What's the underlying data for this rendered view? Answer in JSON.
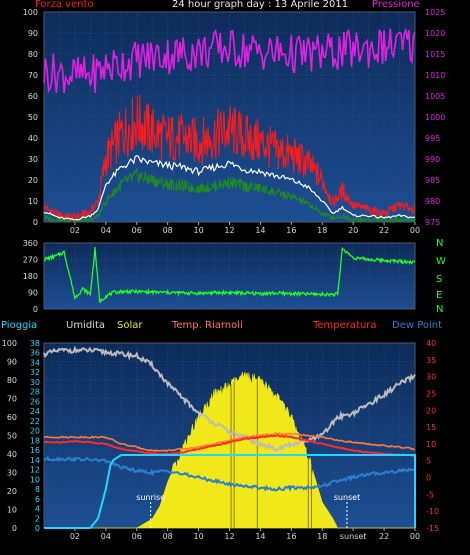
{
  "header": {
    "left_label": "Forza vento",
    "title": "24 hour graph day : 13 Aprile 2011",
    "right_label": "Pressione"
  },
  "legend": {
    "pioggia": "Pioggia",
    "umidita": "Umidita",
    "solar": "Solar",
    "temp_riarnoli": "Temp. Riarnoli",
    "temperatura": "Temperatura",
    "dew_point": "Dew Point"
  },
  "compass": [
    "N",
    "W",
    "S",
    "E",
    "N"
  ],
  "colors": {
    "background": "#000000",
    "plot_bg_top": "#0d2b5a",
    "plot_bg_bottom": "#1d4f94",
    "gust": "#ff1a1a",
    "speed": "#ffffff",
    "avg_speed": "#1f8a1f",
    "pressure": "#e020e0",
    "wind_dir": "#22ff22",
    "humidity": "#bcbcbc",
    "solar": "#f0e818",
    "temp_riarnoli": "#ff7a3a",
    "temperature": "#ff2a2a",
    "dew_point": "#2a7fd0",
    "rain": "#20d8ff"
  },
  "chart_data": [
    {
      "type": "line",
      "name": "wind-pressure",
      "x_tick_labels": [
        "02",
        "04",
        "06",
        "08",
        "10",
        "12",
        "14",
        "16",
        "18",
        "20",
        "22",
        "00"
      ],
      "y_left_ticks": [
        "100",
        "90",
        "80",
        "70",
        "60",
        "50",
        "40",
        "30",
        "20",
        "10",
        "0"
      ],
      "y_right_ticks": [
        "1025",
        "1020",
        "1015",
        "1010",
        "1005",
        "1000",
        "995",
        "990",
        "985",
        "980",
        "975"
      ],
      "ylim_left": [
        0,
        100
      ],
      "ylim_right": [
        973,
        1026
      ],
      "x_range": [
        0,
        24
      ],
      "series": [
        {
          "name": "Forza vento",
          "key": "gust",
          "x": [
            0,
            1,
            2,
            3,
            3.5,
            4,
            5,
            6,
            7,
            8,
            9,
            10,
            11,
            12,
            13,
            14,
            15,
            16,
            17,
            18,
            18.7,
            19.3,
            20,
            21,
            22,
            23,
            24
          ],
          "values": [
            7,
            3,
            2,
            5,
            10,
            30,
            42,
            48,
            43,
            40,
            40,
            38,
            41,
            44,
            40,
            38,
            34,
            32,
            28,
            20,
            9,
            15,
            8,
            6,
            4,
            8,
            6
          ]
        },
        {
          "name": "speed",
          "key": "speed",
          "x": [
            0,
            1,
            2,
            3,
            3.5,
            4,
            5,
            6,
            7,
            8,
            9,
            10,
            11,
            12,
            13,
            14,
            15,
            16,
            17,
            18,
            18.7,
            19.3,
            20,
            21,
            22,
            23,
            24
          ],
          "values": [
            5,
            2,
            1,
            3,
            6,
            18,
            26,
            30,
            28,
            27,
            26,
            24,
            26,
            28,
            25,
            24,
            22,
            20,
            17,
            10,
            4,
            7,
            3,
            3,
            2,
            3,
            2
          ]
        },
        {
          "name": "avg",
          "key": "avg_speed",
          "x": [
            0,
            1,
            2,
            3,
            3.5,
            4,
            5,
            6,
            7,
            8,
            9,
            10,
            11,
            12,
            13,
            14,
            15,
            16,
            17,
            18,
            18.7,
            19.3,
            20,
            21,
            22,
            23,
            24
          ],
          "values": [
            2,
            1,
            0,
            1,
            3,
            10,
            18,
            22,
            20,
            18,
            17,
            16,
            17,
            19,
            17,
            16,
            14,
            12,
            9,
            4,
            2,
            3,
            1,
            1,
            1,
            1,
            1
          ]
        },
        {
          "name": "Pressione",
          "key": "pressure",
          "x": [
            0,
            1,
            2,
            3,
            4,
            5,
            6,
            7,
            8,
            9,
            10,
            11,
            12,
            13,
            14,
            15,
            16,
            17,
            18,
            19,
            20,
            21,
            22,
            23,
            24
          ],
          "values": [
            1011,
            1010.5,
            1010,
            1010,
            1012,
            1013,
            1014,
            1014.8,
            1015.2,
            1015.5,
            1016,
            1016.5,
            1016.8,
            1016.4,
            1016,
            1015.7,
            1015.4,
            1015.3,
            1015.6,
            1016,
            1016.4,
            1016.8,
            1017.2,
            1017.5,
            1017.7
          ]
        }
      ]
    },
    {
      "type": "line",
      "name": "wind-direction",
      "x_tick_labels": [
        "02",
        "04",
        "06",
        "08",
        "10",
        "12",
        "14",
        "16",
        "18",
        "20",
        "22",
        "00"
      ],
      "y_ticks": [
        "360",
        "270",
        "180",
        "90",
        "0"
      ],
      "ylim": [
        0,
        360
      ],
      "x_range": [
        0,
        24
      ],
      "series": [
        {
          "name": "direction",
          "key": "wind_dir",
          "x": [
            0,
            0.8,
            1.3,
            1.7,
            2,
            2.5,
            3,
            3.3,
            3.6,
            4,
            4.5,
            5,
            6,
            7,
            8,
            9,
            10,
            11,
            12,
            13,
            14,
            15,
            16,
            17,
            18,
            19,
            19.3,
            20,
            21,
            22,
            23,
            24
          ],
          "values": [
            270,
            290,
            310,
            170,
            60,
            110,
            80,
            330,
            40,
            70,
            90,
            95,
            95,
            92,
            90,
            88,
            86,
            88,
            90,
            86,
            84,
            86,
            84,
            82,
            80,
            80,
            330,
            280,
            270,
            265,
            260,
            255
          ]
        }
      ]
    },
    {
      "type": "line",
      "name": "temperature-humidity-solar",
      "x_tick_labels": [
        "02",
        "04",
        "06",
        "08",
        "10",
        "12",
        "14",
        "16",
        "18",
        "sunset",
        "22",
        "00"
      ],
      "y_left_ticks": [
        "100",
        "90",
        "80",
        "70",
        "60",
        "50",
        "40",
        "30",
        "20",
        "10",
        "0"
      ],
      "y_inner_ticks": [
        "38",
        "36",
        "34",
        "32",
        "30",
        "28",
        "26",
        "24",
        "22",
        "20",
        "18",
        "16",
        "14",
        "12",
        "10",
        "8",
        "6",
        "4",
        "2",
        "0"
      ],
      "y_right_ticks": [
        "40",
        "35",
        "30",
        "25",
        "20",
        "15",
        "10",
        "5",
        "0",
        "-5",
        "-10",
        "-15"
      ],
      "ylim_left": [
        0,
        100
      ],
      "ylim_right": [
        -15,
        40
      ],
      "x_range": [
        0,
        24
      ],
      "annotations": [
        {
          "text": "sunrise",
          "x": 6.9
        },
        {
          "text": "sunset",
          "x": 19.6
        }
      ],
      "series": [
        {
          "name": "Umidita",
          "key": "humidity",
          "x": [
            0,
            1,
            2,
            3,
            4,
            5,
            6,
            7,
            8,
            9,
            10,
            11,
            12,
            13,
            14,
            15,
            16,
            17,
            18,
            19,
            20,
            21,
            22,
            23,
            24
          ],
          "values": [
            94,
            96,
            96,
            96,
            95,
            94,
            93,
            88,
            78,
            70,
            62,
            57,
            52,
            49,
            45,
            43,
            45,
            47,
            50,
            60,
            62,
            67,
            72,
            78,
            82
          ]
        },
        {
          "name": "Solar",
          "key": "solar",
          "x": [
            0,
            6,
            7,
            7.5,
            8,
            9,
            10,
            11,
            12,
            12.5,
            13,
            13.5,
            14,
            15,
            16,
            16.5,
            17,
            17.5,
            18,
            18.7,
            19,
            24
          ],
          "values": [
            0,
            0,
            5,
            12,
            25,
            44,
            60,
            72,
            77,
            80,
            82,
            81,
            79,
            72,
            60,
            50,
            40,
            28,
            14,
            5,
            0,
            0
          ]
        },
        {
          "name": "Temp. Riarnoli",
          "key": "temp_riarnoli",
          "x": [
            0,
            1,
            2,
            3,
            4,
            5,
            6,
            7,
            8,
            9,
            10,
            11,
            12,
            13,
            14,
            15,
            16,
            17,
            18,
            19,
            20,
            21,
            22,
            23,
            24
          ],
          "values": [
            12,
            12,
            12,
            12,
            12,
            10,
            9,
            8,
            8,
            8.5,
            9,
            10,
            11,
            12,
            12.5,
            13,
            13,
            12.5,
            12,
            11,
            10.5,
            10,
            9.5,
            9,
            8.5
          ]
        },
        {
          "name": "Temperatura",
          "key": "temperature",
          "x": [
            0,
            1,
            2,
            3,
            4,
            5,
            6,
            7,
            8,
            9,
            10,
            11,
            12,
            13,
            14,
            15,
            16,
            17,
            18,
            19,
            20,
            21,
            22,
            23,
            24
          ],
          "values": [
            10.5,
            10.5,
            10.8,
            10.5,
            10,
            8.5,
            7.8,
            7.2,
            7,
            7.5,
            8.5,
            9.5,
            10.5,
            11.5,
            12,
            12.5,
            12,
            11,
            10,
            9,
            8,
            7.5,
            7,
            6.8,
            6.5
          ]
        },
        {
          "name": "Dew Point",
          "key": "dew_point",
          "x": [
            0,
            1,
            2,
            3,
            4,
            5,
            6,
            7,
            8,
            9,
            10,
            11,
            12,
            13,
            14,
            15,
            16,
            17,
            18,
            19,
            20,
            21,
            22,
            23,
            24
          ],
          "values": [
            5.5,
            5.5,
            5.5,
            5.3,
            5,
            3,
            2,
            1.5,
            2,
            1,
            0,
            -1,
            -2,
            -2.5,
            -3,
            -3.5,
            -3,
            -3,
            -2.5,
            -1,
            0,
            1,
            1.5,
            2,
            2.5
          ]
        },
        {
          "name": "Pioggia",
          "key": "rain",
          "x": [
            0,
            3,
            3.5,
            4,
            4.3,
            4.5,
            5,
            24,
            24.01
          ],
          "values": [
            0,
            0,
            2,
            8,
            13,
            14,
            15,
            15,
            15
          ]
        }
      ]
    }
  ]
}
